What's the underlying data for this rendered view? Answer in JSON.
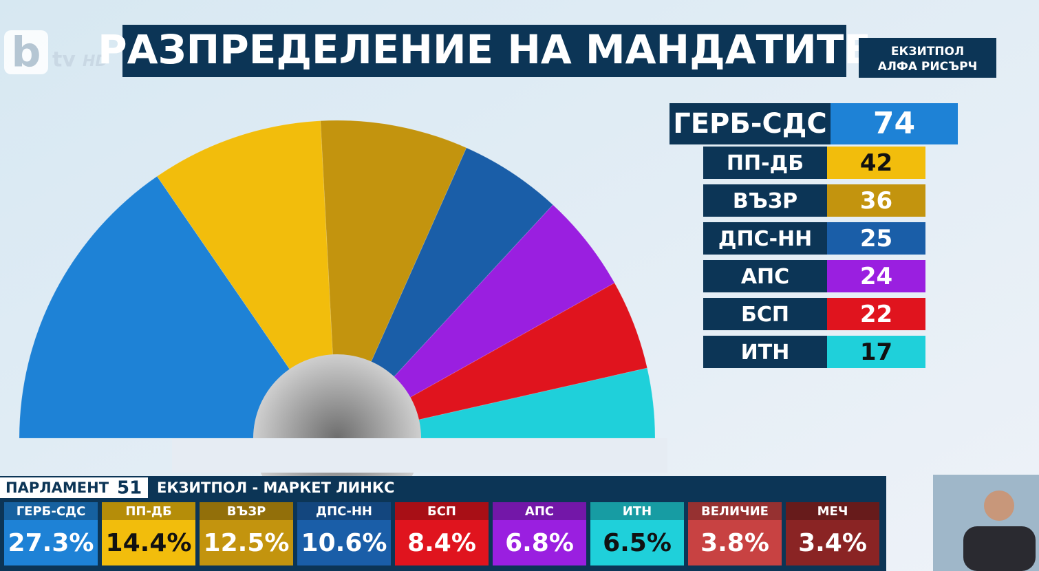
{
  "logo": {
    "letter": "b",
    "word": "tv",
    "badge": "HD"
  },
  "title": "РАЗПРЕДЕЛЕНИЕ НА МАНДАТИТЕ",
  "source": [
    "ЕКЗИТПОЛ",
    "АЛФА РИСЪРЧ"
  ],
  "chart_data": {
    "type": "hemicycle",
    "categories": [
      "ГЕРБ-СДС",
      "ПП-ДБ",
      "ВЪЗР",
      "ДПС-НН",
      "АПС",
      "БСП",
      "ИТН"
    ],
    "values": [
      74,
      42,
      36,
      25,
      24,
      22,
      17
    ],
    "colors": [
      "#1e82d6",
      "#f2bd0c",
      "#c3940e",
      "#1a5ea8",
      "#9a1fe0",
      "#e0141e",
      "#1fd0da"
    ]
  },
  "ticker": {
    "label": "ПАРЛАМЕНТ",
    "number": "51",
    "source": "ЕКЗИТПОЛ - МАРКЕТ ЛИНКС",
    "categories": [
      "ГЕРБ-СДС",
      "ПП-ДБ",
      "ВЪЗР",
      "ДПС-НН",
      "БСП",
      "АПС",
      "ИТН",
      "ВЕЛИЧИЕ",
      "МЕЧ"
    ],
    "values": [
      27.3,
      14.4,
      12.5,
      10.6,
      8.4,
      6.8,
      6.5,
      3.8,
      3.4
    ],
    "value_labels": [
      "27.3%",
      "14.4%",
      "12.5%",
      "10.6%",
      "8.4%",
      "6.8%",
      "6.5%",
      "3.8%",
      "3.4%"
    ],
    "colors": [
      "#1e82d6",
      "#f2bd0c",
      "#c3940e",
      "#1a5ea8",
      "#e0141e",
      "#9a1fe0",
      "#1fd0da",
      "#c84242",
      "#8a2424"
    ]
  }
}
